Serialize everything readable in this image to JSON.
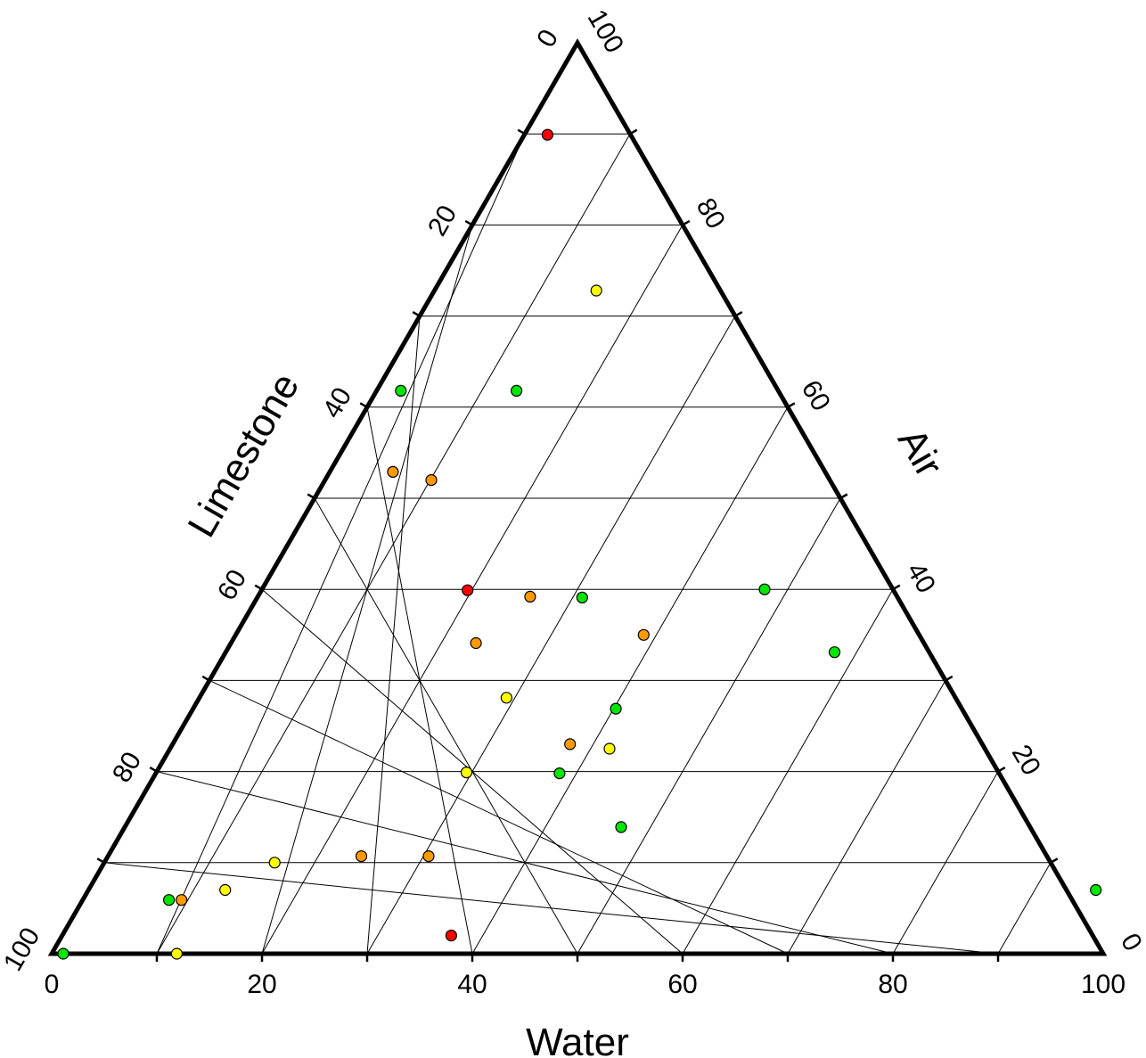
{
  "chart_data": {
    "type": "scatter",
    "subtype": "ternary",
    "axes": {
      "bottom": {
        "label": "Water",
        "ticks": [
          "0",
          "20",
          "40",
          "60",
          "80",
          "100"
        ]
      },
      "left": {
        "label": "Limestone",
        "ticks": [
          "0",
          "20",
          "40",
          "60",
          "80",
          "100"
        ]
      },
      "right": {
        "label": "Air",
        "ticks": [
          "0",
          "20",
          "40",
          "60",
          "80",
          "100"
        ]
      }
    },
    "range": [
      0,
      100
    ],
    "grid": true,
    "grid_step": 10,
    "colors": {
      "red": "#ff0000",
      "orange": "#ff9900",
      "yellow": "#ffff00",
      "green": "#00e600"
    },
    "points": [
      {
        "water": 2.2,
        "air": 89.9,
        "color": "red"
      },
      {
        "water": 15.4,
        "air": 72.8,
        "color": "yellow"
      },
      {
        "water": 2.3,
        "air": 61.8,
        "color": "green"
      },
      {
        "water": 13.3,
        "air": 61.8,
        "color": "green"
      },
      {
        "water": 10.1,
        "air": 52.0,
        "color": "orange"
      },
      {
        "water": 6.0,
        "air": 52.9,
        "color": "orange"
      },
      {
        "water": 19.6,
        "air": 39.9,
        "color": "red"
      },
      {
        "water": 25.9,
        "air": 39.2,
        "color": "orange"
      },
      {
        "water": 30.9,
        "air": 39.1,
        "color": "green"
      },
      {
        "water": 23.3,
        "air": 34.1,
        "color": "orange"
      },
      {
        "water": 38.8,
        "air": 35.0,
        "color": "orange"
      },
      {
        "water": 47.8,
        "air": 40.0,
        "color": "green"
      },
      {
        "water": 57.9,
        "air": 33.1,
        "color": "green"
      },
      {
        "water": 29.2,
        "air": 28.1,
        "color": "yellow"
      },
      {
        "water": 40.2,
        "air": 26.9,
        "color": "green"
      },
      {
        "water": 37.8,
        "air": 23.0,
        "color": "orange"
      },
      {
        "water": 41.8,
        "air": 22.5,
        "color": "yellow"
      },
      {
        "water": 29.5,
        "air": 19.9,
        "color": "yellow"
      },
      {
        "water": 38.4,
        "air": 19.8,
        "color": "green"
      },
      {
        "water": 47.2,
        "air": 13.9,
        "color": "green"
      },
      {
        "water": 30.5,
        "air": 10.7,
        "color": "orange"
      },
      {
        "water": 24.1,
        "air": 10.7,
        "color": "orange"
      },
      {
        "water": 16.2,
        "air": 10.0,
        "color": "yellow"
      },
      {
        "water": 13.0,
        "air": 7.0,
        "color": "yellow"
      },
      {
        "water": 9.4,
        "air": 5.9,
        "color": "orange"
      },
      {
        "water": 8.2,
        "air": 5.9,
        "color": "green"
      },
      {
        "water": 95.8,
        "air": 7.0,
        "color": "green"
      },
      {
        "water": 37.0,
        "air": 2.0,
        "color": "red"
      },
      {
        "water": 11.9,
        "air": 0.0,
        "color": "yellow"
      },
      {
        "water": 1.1,
        "air": 0.0,
        "color": "green"
      }
    ]
  }
}
